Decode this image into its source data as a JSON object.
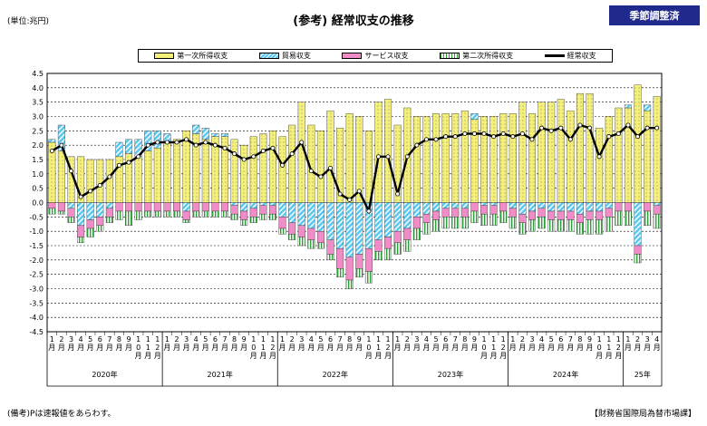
{
  "header": {
    "unit_label": "(単位:兆円)",
    "title": "(参考) 経常収支の推移",
    "badge": "季節調整済"
  },
  "footer": {
    "note": "(備考)Pは速報値をあらわす。",
    "source": "【財務省国際局為替市場課】"
  },
  "colors": {
    "primary_income": "#f5f07a",
    "trade": "#5bc8f0",
    "services": "#f08cc8",
    "secondary_income": "#2f9e3a",
    "current_account": "#000000"
  },
  "chart_data": {
    "type": "bar",
    "stacked": true,
    "ylim": [
      -4.5,
      4.5
    ],
    "yticks": [
      "4.5",
      "4.0",
      "3.5",
      "3.0",
      "2.5",
      "2.0",
      "1.5",
      "1.0",
      "0.5",
      "0.0",
      "-0.5",
      "-1.0",
      "-1.5",
      "-2.0",
      "-2.5",
      "-3.0",
      "-3.5",
      "-4.0",
      "-4.5"
    ],
    "grid": true,
    "legend_position": "top",
    "months": [
      "1",
      "2",
      "3",
      "4",
      "5",
      "6",
      "7",
      "8",
      "9",
      "10",
      "11",
      "12",
      "1",
      "2",
      "3",
      "4",
      "5",
      "6",
      "7",
      "8",
      "9",
      "10",
      "11",
      "12",
      "1",
      "2",
      "3",
      "4",
      "5",
      "6",
      "7",
      "8",
      "9",
      "10",
      "11",
      "12",
      "1",
      "2",
      "3",
      "4",
      "5",
      "6",
      "7",
      "8",
      "9",
      "10",
      "11",
      "12",
      "1",
      "2",
      "3",
      "4",
      "5",
      "6",
      "7",
      "8",
      "9",
      "10",
      "11",
      "12",
      "1",
      "2",
      "3",
      "4"
    ],
    "month_suffix": "月",
    "prelim_marks": [
      "",
      "",
      "",
      "",
      "",
      "",
      "",
      "",
      "",
      "",
      "",
      "",
      "",
      "",
      "",
      "",
      "",
      "",
      "",
      "",
      "",
      "",
      "",
      "",
      "",
      "",
      "",
      "",
      "",
      "",
      "",
      "",
      "",
      "",
      "",
      "",
      "",
      "",
      "",
      "",
      "",
      "",
      "",
      "",
      "",
      "",
      "",
      "",
      "",
      "",
      "",
      "",
      "",
      "",
      "",
      "",
      "",
      "",
      "",
      "",
      "",
      "",
      "",
      "",
      "P",
      "P",
      "P",
      "P"
    ],
    "years": [
      {
        "label": "2020年",
        "count": 12
      },
      {
        "label": "2021年",
        "count": 12
      },
      {
        "label": "2022年",
        "count": 12
      },
      {
        "label": "2023年",
        "count": 12
      },
      {
        "label": "2024年",
        "count": 12
      },
      {
        "label": "25年",
        "count": 4
      }
    ],
    "series": [
      {
        "name": "第一次所得収支",
        "key": "primary_income",
        "values": [
          2.1,
          1.8,
          1.6,
          1.6,
          1.5,
          1.5,
          1.5,
          1.6,
          1.7,
          1.6,
          1.8,
          1.9,
          2.1,
          2.2,
          2.5,
          2.4,
          2.2,
          2.3,
          2.3,
          2.2,
          2.0,
          2.3,
          2.4,
          2.5,
          2.3,
          2.7,
          3.5,
          2.7,
          2.5,
          3.2,
          2.6,
          3.1,
          3.0,
          2.5,
          3.5,
          3.6,
          2.7,
          3.3,
          3.0,
          3.0,
          3.1,
          3.1,
          3.1,
          3.2,
          2.9,
          3.0,
          3.0,
          3.1,
          3.1,
          3.5,
          3.1,
          3.5,
          3.5,
          3.6,
          3.2,
          3.8,
          3.8,
          2.6,
          3.0,
          3.3,
          3.3,
          4.1,
          3.2,
          3.7
        ]
      },
      {
        "name": "貿易収支",
        "key": "trade",
        "values": [
          0.1,
          0.9,
          -0.2,
          -0.8,
          -0.6,
          -0.5,
          -0.2,
          0.5,
          0.5,
          0.6,
          0.7,
          0.6,
          0.3,
          0.0,
          -0.3,
          0.3,
          0.4,
          0.1,
          0.1,
          -0.1,
          -0.3,
          -0.2,
          -0.1,
          -0.1,
          -0.5,
          -0.7,
          -0.8,
          -0.9,
          -1.0,
          -1.3,
          -1.6,
          -1.9,
          -1.8,
          -1.6,
          -1.3,
          -1.2,
          -1.0,
          -0.9,
          -0.5,
          -0.4,
          -0.3,
          -0.2,
          -0.2,
          -0.2,
          0.2,
          -0.1,
          -0.1,
          0.0,
          -0.2,
          -0.4,
          -0.3,
          -0.2,
          -0.3,
          -0.3,
          -0.3,
          -0.4,
          -0.3,
          -0.3,
          -0.2,
          0.0,
          0.1,
          -1.5,
          0.2,
          -0.1
        ]
      },
      {
        "name": "サービス収支",
        "key": "services",
        "values": [
          -0.2,
          -0.3,
          -0.3,
          -0.4,
          -0.3,
          -0.3,
          -0.3,
          -0.3,
          -0.3,
          -0.3,
          -0.3,
          -0.3,
          -0.3,
          -0.3,
          -0.3,
          -0.3,
          -0.3,
          -0.3,
          -0.3,
          -0.3,
          -0.3,
          -0.3,
          -0.3,
          -0.3,
          -0.4,
          -0.4,
          -0.4,
          -0.4,
          -0.4,
          -0.5,
          -0.7,
          -0.8,
          -0.5,
          -0.8,
          -0.4,
          -0.4,
          -0.4,
          -0.4,
          -0.4,
          -0.3,
          -0.3,
          -0.3,
          -0.3,
          -0.3,
          -0.3,
          -0.3,
          -0.3,
          -0.3,
          -0.3,
          -0.3,
          -0.3,
          -0.3,
          -0.3,
          -0.3,
          -0.3,
          -0.3,
          -0.3,
          -0.3,
          -0.3,
          -0.3,
          -0.3,
          -0.3,
          -0.3,
          -0.3
        ]
      },
      {
        "name": "第二次所得収支",
        "key": "secondary_income",
        "values": [
          -0.2,
          -0.1,
          -0.2,
          -0.2,
          -0.3,
          -0.2,
          -0.2,
          -0.3,
          -0.5,
          -0.3,
          -0.2,
          -0.2,
          -0.2,
          -0.2,
          -0.1,
          -0.2,
          -0.2,
          -0.2,
          -0.2,
          -0.2,
          -0.2,
          -0.2,
          -0.2,
          -0.2,
          -0.2,
          -0.2,
          -0.3,
          -0.3,
          -0.2,
          -0.2,
          -0.3,
          -0.3,
          -0.3,
          -0.4,
          -0.3,
          -0.4,
          -0.4,
          -0.4,
          -0.4,
          -0.4,
          -0.4,
          -0.4,
          -0.4,
          -0.4,
          -0.4,
          -0.4,
          -0.4,
          -0.4,
          -0.4,
          -0.4,
          -0.4,
          -0.4,
          -0.4,
          -0.4,
          -0.4,
          -0.4,
          -0.5,
          -0.5,
          -0.5,
          -0.5,
          -0.5,
          -0.3,
          -0.5,
          -0.5
        ]
      },
      {
        "name": "経常収支",
        "key": "current_account",
        "type": "line",
        "values": [
          1.8,
          2.0,
          1.1,
          0.2,
          0.4,
          0.6,
          0.9,
          1.3,
          1.4,
          1.6,
          2.0,
          2.1,
          2.1,
          2.1,
          2.2,
          2.0,
          2.1,
          2.0,
          1.9,
          1.7,
          1.5,
          1.6,
          1.8,
          1.9,
          1.3,
          1.7,
          2.1,
          1.1,
          0.9,
          1.2,
          0.3,
          0.1,
          0.4,
          -0.3,
          1.6,
          1.6,
          0.3,
          1.6,
          2.0,
          2.2,
          2.2,
          2.3,
          2.3,
          2.4,
          2.4,
          2.4,
          2.3,
          2.4,
          2.3,
          2.4,
          2.2,
          2.6,
          2.5,
          2.6,
          2.2,
          2.7,
          2.6,
          1.6,
          2.3,
          2.4,
          2.7,
          2.3,
          2.6,
          2.6
        ]
      }
    ]
  },
  "legend": [
    {
      "label": "第一次所得収支",
      "key": "primary_income"
    },
    {
      "label": "貿易収支",
      "key": "trade"
    },
    {
      "label": "サービス収支",
      "key": "services"
    },
    {
      "label": "第二次所得収支",
      "key": "secondary_income"
    },
    {
      "label": "経常収支",
      "key": "current_account"
    }
  ]
}
